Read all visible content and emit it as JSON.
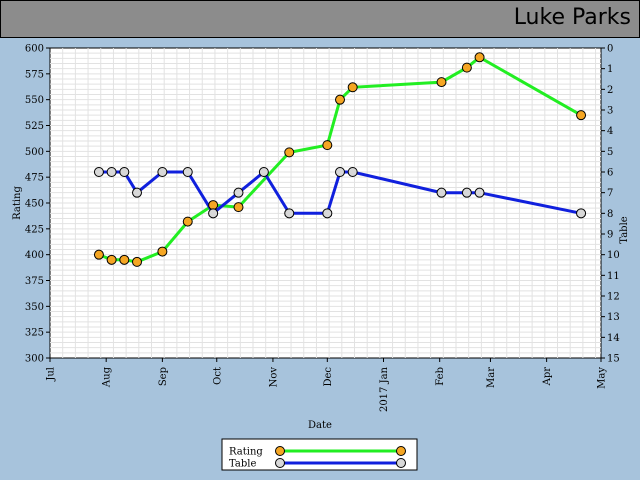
{
  "header": {
    "title": "Luke Parks"
  },
  "chart_data": {
    "type": "line",
    "xlabel": "Date",
    "ylabel_left": "Rating",
    "ylabel_right": "Table",
    "x_ticks": [
      "Jul",
      "Aug",
      "Sep",
      "Oct",
      "Nov",
      "Dec",
      "2017 Jan",
      "Feb",
      "Mar",
      "Apr",
      "May"
    ],
    "x_range": [
      "2016-07-01",
      "2017-05-01"
    ],
    "y_left_range": [
      300,
      600
    ],
    "y_left_ticks": [
      300,
      325,
      350,
      375,
      400,
      425,
      450,
      475,
      500,
      525,
      550,
      575,
      600
    ],
    "y_right_range": [
      0,
      15
    ],
    "y_right_inverted": true,
    "y_right_ticks": [
      0,
      1,
      2,
      3,
      4,
      5,
      6,
      7,
      8,
      9,
      10,
      11,
      12,
      13,
      14,
      15
    ],
    "grid": true,
    "legend_placement": "bottom-center",
    "series": [
      {
        "name": "Rating",
        "axis": "left",
        "line_color": "#22ee22",
        "marker_color": "#f5a623",
        "points": [
          [
            "2016-07-28",
            400
          ],
          [
            "2016-08-04",
            395
          ],
          [
            "2016-08-11",
            395
          ],
          [
            "2016-08-18",
            393
          ],
          [
            "2016-09-01",
            403
          ],
          [
            "2016-09-15",
            432
          ],
          [
            "2016-09-29",
            448
          ],
          [
            "2016-10-13",
            446
          ],
          [
            "2016-11-10",
            499
          ],
          [
            "2016-12-01",
            506
          ],
          [
            "2016-12-08",
            550
          ],
          [
            "2016-12-15",
            562
          ],
          [
            "2017-02-02",
            567
          ],
          [
            "2017-02-16",
            581
          ],
          [
            "2017-02-23",
            591
          ],
          [
            "2017-04-20",
            535
          ]
        ]
      },
      {
        "name": "Table",
        "axis": "right",
        "line_color": "#1020dd",
        "marker_color": "#d8d8d8",
        "points": [
          [
            "2016-07-28",
            6
          ],
          [
            "2016-08-04",
            6
          ],
          [
            "2016-08-11",
            6
          ],
          [
            "2016-08-18",
            7
          ],
          [
            "2016-09-01",
            6
          ],
          [
            "2016-09-15",
            6
          ],
          [
            "2016-09-29",
            8
          ],
          [
            "2016-10-13",
            7
          ],
          [
            "2016-10-27",
            6
          ],
          [
            "2016-11-10",
            8
          ],
          [
            "2016-12-01",
            8
          ],
          [
            "2016-12-08",
            6
          ],
          [
            "2016-12-15",
            6
          ],
          [
            "2017-02-02",
            7
          ],
          [
            "2017-02-16",
            7
          ],
          [
            "2017-02-23",
            7
          ],
          [
            "2017-04-20",
            8
          ]
        ]
      }
    ]
  }
}
